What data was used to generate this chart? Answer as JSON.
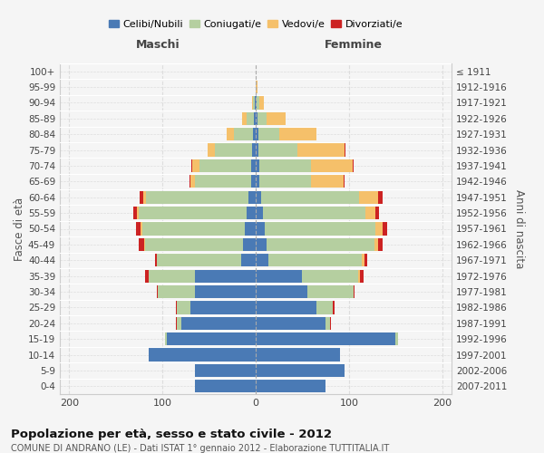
{
  "age_groups": [
    "0-4",
    "5-9",
    "10-14",
    "15-19",
    "20-24",
    "25-29",
    "30-34",
    "35-39",
    "40-44",
    "45-49",
    "50-54",
    "55-59",
    "60-64",
    "65-69",
    "70-74",
    "75-79",
    "80-84",
    "85-89",
    "90-94",
    "95-99",
    "100+"
  ],
  "birth_years": [
    "2007-2011",
    "2002-2006",
    "1997-2001",
    "1992-1996",
    "1987-1991",
    "1982-1986",
    "1977-1981",
    "1972-1976",
    "1967-1971",
    "1962-1966",
    "1957-1961",
    "1952-1956",
    "1947-1951",
    "1942-1946",
    "1937-1941",
    "1932-1936",
    "1927-1931",
    "1922-1926",
    "1917-1921",
    "1912-1916",
    "≤ 1911"
  ],
  "maschi": {
    "celibi": [
      65,
      65,
      115,
      95,
      80,
      70,
      65,
      65,
      16,
      14,
      12,
      10,
      8,
      5,
      5,
      4,
      3,
      2,
      1,
      0,
      0
    ],
    "coniugati": [
      0,
      0,
      0,
      2,
      5,
      15,
      40,
      50,
      90,
      105,
      110,
      115,
      110,
      60,
      55,
      40,
      20,
      8,
      2,
      0,
      0
    ],
    "vedovi": [
      0,
      0,
      0,
      0,
      0,
      0,
      0,
      0,
      0,
      1,
      1,
      2,
      3,
      5,
      8,
      8,
      8,
      5,
      1,
      0,
      0
    ],
    "divorziati": [
      0,
      0,
      0,
      0,
      1,
      1,
      1,
      4,
      2,
      5,
      5,
      4,
      3,
      1,
      1,
      0,
      0,
      0,
      0,
      0,
      0
    ]
  },
  "femmine": {
    "nubili": [
      75,
      95,
      90,
      150,
      75,
      65,
      55,
      50,
      14,
      12,
      10,
      8,
      6,
      4,
      4,
      3,
      3,
      2,
      1,
      0,
      0
    ],
    "coniugate": [
      0,
      0,
      0,
      3,
      5,
      18,
      50,
      60,
      100,
      115,
      118,
      110,
      105,
      55,
      55,
      42,
      22,
      10,
      3,
      0,
      0
    ],
    "vedove": [
      0,
      0,
      0,
      0,
      0,
      0,
      0,
      2,
      3,
      4,
      8,
      10,
      20,
      35,
      45,
      50,
      40,
      20,
      5,
      2,
      0
    ],
    "divorziate": [
      0,
      0,
      0,
      0,
      1,
      2,
      1,
      4,
      3,
      5,
      5,
      4,
      5,
      1,
      1,
      1,
      0,
      0,
      0,
      0,
      0
    ]
  },
  "colors": {
    "celibi": "#4a7ab5",
    "coniugati": "#b5cfa0",
    "vedovi": "#f5c06a",
    "divorziati": "#cc2222"
  },
  "xlim": 210,
  "title": "Popolazione per età, sesso e stato civile - 2012",
  "subtitle": "COMUNE DI ANDRANO (LE) - Dati ISTAT 1° gennaio 2012 - Elaborazione TUTTITALIA.IT",
  "xlabel_maschi": "Maschi",
  "xlabel_femmine": "Femmine",
  "ylabel_left": "Fasce di età",
  "ylabel_right": "Anni di nascita",
  "legend_labels": [
    "Celibi/Nubili",
    "Coniugati/e",
    "Vedovi/e",
    "Divorziati/e"
  ],
  "bg_color": "#f5f5f5"
}
